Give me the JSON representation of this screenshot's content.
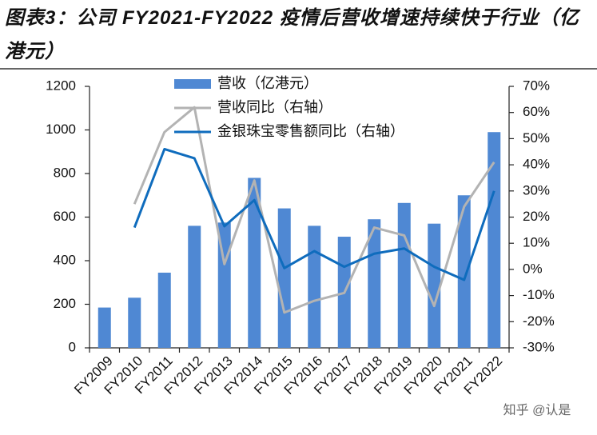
{
  "chart_data": {
    "type": "bar-line",
    "title": "图表3：公司 FY2021-FY2022 疫情后营收增速持续快于行业（亿港元）",
    "watermark": "知乎 @认是",
    "categories": [
      "FY2009",
      "FY2010",
      "FY2011",
      "FY2012",
      "FY2013",
      "FY2014",
      "FY2015",
      "FY2016",
      "FY2017",
      "FY2018",
      "FY2019",
      "FY2020",
      "FY2021",
      "FY2022"
    ],
    "series": [
      {
        "name": "营收（亿港元）",
        "type": "bar",
        "color": "#4f88d3",
        "values": [
          185,
          230,
          345,
          560,
          575,
          780,
          640,
          560,
          510,
          590,
          665,
          570,
          700,
          990
        ]
      },
      {
        "name": "营收同比（右轴）",
        "type": "line",
        "axis": "y2",
        "color": "#b3b3b3",
        "values": [
          null,
          25,
          52.5,
          62,
          2,
          34,
          -16.5,
          -12,
          -9,
          16,
          13,
          -14,
          24,
          41
        ]
      },
      {
        "name": "金银珠宝零售额同比（右轴）",
        "type": "line",
        "axis": "y2",
        "color": "#0f6cbd",
        "values": [
          null,
          16,
          46,
          42.5,
          16.5,
          26.5,
          0.5,
          7,
          1,
          6,
          8,
          1,
          -4,
          30
        ]
      }
    ],
    "ylim": [
      0,
      1200
    ],
    "yticks": [
      0,
      200,
      400,
      600,
      800,
      1000,
      1200
    ],
    "y2lim": [
      -30,
      70
    ],
    "y2ticks": [
      {
        "value": -30,
        "label": "-30%"
      },
      {
        "value": -20,
        "label": "-20%"
      },
      {
        "value": -10,
        "label": "-10%"
      },
      {
        "value": 0,
        "label": "0%"
      },
      {
        "value": 10,
        "label": "10%"
      },
      {
        "value": 20,
        "label": "20%"
      },
      {
        "value": 30,
        "label": "30%"
      },
      {
        "value": 40,
        "label": "40%"
      },
      {
        "value": 50,
        "label": "50%"
      },
      {
        "value": 60,
        "label": "60%"
      },
      {
        "value": 70,
        "label": "70%"
      }
    ],
    "grid": false,
    "legend": "top"
  }
}
